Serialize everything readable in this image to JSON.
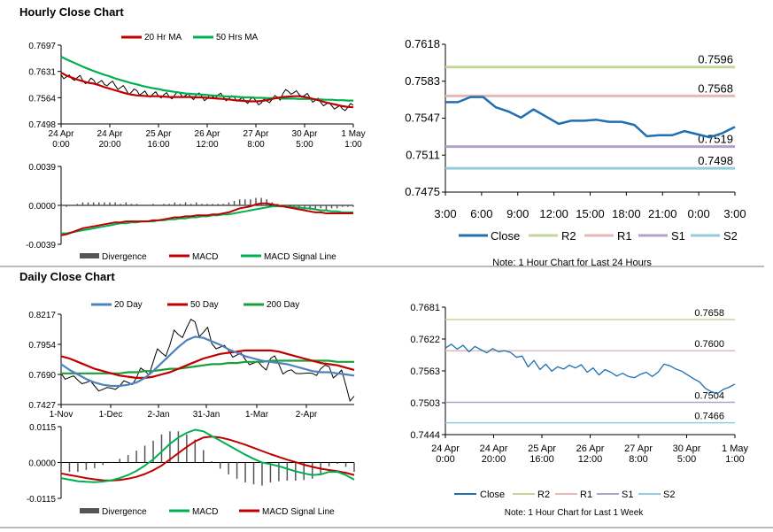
{
  "sections": {
    "hourly_title": "Hourly Close Chart",
    "daily_title": "Daily Close Chart"
  },
  "colors": {
    "ma_short": "#c00000",
    "ma_long": "#00b050",
    "ma_200": "#1a9e3c",
    "blue": "#4f81bd",
    "close": "#1f6fb2",
    "r2": "#c3d69b",
    "r1": "#e6b9b8",
    "s1": "#b3a2c7",
    "s2": "#93cddd",
    "price": "#000000",
    "divergence": "#555555"
  },
  "chart_data": [
    {
      "id": "hourly_price",
      "type": "line",
      "legend": [
        "20 Hr MA",
        "50 Hrs MA"
      ],
      "ylim": [
        0.7498,
        0.7697
      ],
      "yticks": [
        "0.7697",
        "0.7631",
        "0.7564",
        "0.7498"
      ],
      "xticks": [
        [
          "24 Apr",
          "0:00"
        ],
        [
          "24 Apr",
          "20:00"
        ],
        [
          "25 Apr",
          "16:00"
        ],
        [
          "26 Apr",
          "12:00"
        ],
        [
          "27 Apr",
          "8:00"
        ],
        [
          "30 Apr",
          "5:00"
        ],
        [
          "1 May",
          "1:00"
        ]
      ],
      "price": [
        0.7622,
        0.7617,
        0.7612,
        0.7615,
        0.7608,
        0.7604,
        0.7609,
        0.7603,
        0.7598,
        0.7601,
        0.7595,
        0.759,
        0.7585,
        0.7578,
        0.7582,
        0.7576,
        0.757,
        0.7574,
        0.7568,
        0.7572,
        0.7566,
        0.7571,
        0.7575,
        0.757,
        0.7565,
        0.7572,
        0.7568,
        0.7562,
        0.7567,
        0.7571,
        0.7566,
        0.7561,
        0.7565,
        0.756,
        0.7555,
        0.7561,
        0.7556,
        0.7551,
        0.7556,
        0.756,
        0.7565,
        0.7575,
        0.758,
        0.7577,
        0.7572,
        0.757,
        0.7564,
        0.7558,
        0.7552,
        0.7548,
        0.7544,
        0.754,
        0.7536,
        0.754,
        0.7545
      ],
      "ma20": [
        0.7628,
        0.762,
        0.7615,
        0.761,
        0.7606,
        0.7602,
        0.76,
        0.7596,
        0.7591,
        0.7587,
        0.7583,
        0.7579,
        0.7575,
        0.7572,
        0.757,
        0.7569,
        0.7568,
        0.7568,
        0.7568,
        0.7567,
        0.7566,
        0.7566,
        0.7566,
        0.7566,
        0.7566,
        0.7565,
        0.7565,
        0.7564,
        0.7563,
        0.7562,
        0.7561,
        0.756,
        0.7558,
        0.7557,
        0.7556,
        0.7555,
        0.7555,
        0.7556,
        0.7558,
        0.7561,
        0.7564,
        0.7566,
        0.7567,
        0.7568,
        0.7568,
        0.7566,
        0.7563,
        0.756,
        0.7556,
        0.7552,
        0.7549,
        0.7546,
        0.7543,
        0.7541,
        0.754
      ],
      "ma50": [
        0.7668,
        0.7661,
        0.7655,
        0.7649,
        0.7643,
        0.7637,
        0.7632,
        0.7627,
        0.7622,
        0.7618,
        0.7613,
        0.7609,
        0.7605,
        0.7601,
        0.7598,
        0.7594,
        0.7591,
        0.7588,
        0.7586,
        0.7583,
        0.7581,
        0.7579,
        0.7577,
        0.7575,
        0.7574,
        0.7573,
        0.7572,
        0.7571,
        0.757,
        0.7569,
        0.7568,
        0.7567,
        0.7567,
        0.7566,
        0.7565,
        0.7565,
        0.7564,
        0.7564,
        0.7563,
        0.7563,
        0.7563,
        0.7562,
        0.7562,
        0.7562,
        0.7561,
        0.7561,
        0.7561,
        0.756,
        0.756,
        0.7559,
        0.7559,
        0.7558,
        0.7558,
        0.7557,
        0.7557
      ]
    },
    {
      "id": "hourly_macd",
      "type": "line",
      "legend": [
        "Divergence",
        "MACD",
        "MACD Signal Line"
      ],
      "ylim": [
        -0.0039,
        0.0039
      ],
      "yticks": [
        "0.0039",
        "0.0000",
        "-0.0039"
      ],
      "macd": [
        -0.003,
        -0.0029,
        -0.0027,
        -0.0025,
        -0.0023,
        -0.0022,
        -0.0021,
        -0.002,
        -0.0019,
        -0.0018,
        -0.0017,
        -0.0017,
        -0.0016,
        -0.0016,
        -0.0016,
        -0.0016,
        -0.0016,
        -0.0015,
        -0.0015,
        -0.0014,
        -0.0013,
        -0.0012,
        -0.0012,
        -0.0011,
        -0.0011,
        -0.001,
        -0.001,
        -0.001,
        -0.0009,
        -0.0009,
        -0.0008,
        -0.0007,
        -0.0005,
        -0.0003,
        -0.0002,
        -0.0001,
        0.0001,
        0.0002,
        0.0002,
        0.0001,
        0.0,
        -0.0001,
        -0.0002,
        -0.0003,
        -0.0004,
        -0.0005,
        -0.0006,
        -0.0007,
        -0.0007,
        -0.0008,
        -0.0008,
        -0.0008,
        -0.0008,
        -0.0008,
        -0.0008
      ],
      "signal": [
        -0.0028,
        -0.0028,
        -0.0027,
        -0.0026,
        -0.0025,
        -0.0024,
        -0.0023,
        -0.0022,
        -0.0021,
        -0.002,
        -0.0019,
        -0.0018,
        -0.0018,
        -0.0017,
        -0.0017,
        -0.0016,
        -0.0016,
        -0.0016,
        -0.0015,
        -0.0015,
        -0.0014,
        -0.0014,
        -0.0013,
        -0.0013,
        -0.0012,
        -0.0012,
        -0.0011,
        -0.0011,
        -0.001,
        -0.001,
        -0.0009,
        -0.0009,
        -0.0008,
        -0.0007,
        -0.0006,
        -0.0005,
        -0.0004,
        -0.0003,
        -0.0002,
        -0.0001,
        -0.0001,
        -0.0001,
        -0.0001,
        -0.0002,
        -0.0002,
        -0.0003,
        -0.0003,
        -0.0004,
        -0.0005,
        -0.0005,
        -0.0006,
        -0.0006,
        -0.0007,
        -0.0007,
        -0.0007
      ]
    },
    {
      "id": "hourly_24h",
      "type": "line",
      "legend": [
        "Close",
        "R2",
        "R1",
        "S1",
        "S2"
      ],
      "note": "Note: 1 Hour Chart for Last 24 Hours",
      "ylim": [
        0.7475,
        0.7618
      ],
      "yticks": [
        "0.7618",
        "0.7583",
        "0.7547",
        "0.7511",
        "0.7475"
      ],
      "xticks": [
        "3:00",
        "6:00",
        "9:00",
        "12:00",
        "15:00",
        "18:00",
        "21:00",
        "0:00",
        "3:00"
      ],
      "levels": [
        {
          "name": "R2",
          "value": 0.7596,
          "label": "0.7596"
        },
        {
          "name": "R1",
          "value": 0.7568,
          "label": "0.7568"
        },
        {
          "name": "S1",
          "value": 0.7519,
          "label": "0.7519"
        },
        {
          "name": "S2",
          "value": 0.7498,
          "label": "0.7498"
        }
      ],
      "close": [
        0.7562,
        0.7562,
        0.7567,
        0.7567,
        0.7557,
        0.7553,
        0.7547,
        0.7555,
        0.7548,
        0.7541,
        0.7544,
        0.7544,
        0.7545,
        0.7543,
        0.7543,
        0.754,
        0.7529,
        0.753,
        0.753,
        0.7534,
        0.7531,
        0.7528,
        0.7532,
        0.7538
      ]
    },
    {
      "id": "daily_price",
      "type": "line",
      "legend": [
        "20 Day",
        "50 Day",
        "200 Day"
      ],
      "ylim": [
        0.7427,
        0.8217
      ],
      "yticks": [
        "0.8217",
        "0.7954",
        "0.7690",
        "0.7427"
      ],
      "xticks": [
        "1-Nov",
        "1-Dec",
        "2-Jan",
        "31-Jan",
        "1-Mar",
        "2-Apr"
      ],
      "price": [
        0.77,
        0.7665,
        0.764,
        0.762,
        0.759,
        0.756,
        0.757,
        0.759,
        0.762,
        0.766,
        0.772,
        0.78,
        0.788,
        0.795,
        0.804,
        0.81,
        0.815,
        0.806,
        0.796,
        0.793,
        0.79,
        0.786,
        0.782,
        0.779,
        0.776,
        0.783,
        0.778,
        0.772,
        0.77,
        0.77,
        0.77,
        0.774,
        0.776,
        0.769,
        0.76,
        0.75
      ],
      "d20": [
        0.778,
        0.773,
        0.769,
        0.765,
        0.762,
        0.76,
        0.759,
        0.759,
        0.76,
        0.762,
        0.766,
        0.772,
        0.779,
        0.786,
        0.793,
        0.799,
        0.802,
        0.801,
        0.798,
        0.795,
        0.791,
        0.788,
        0.785,
        0.783,
        0.781,
        0.78,
        0.779,
        0.778,
        0.776,
        0.774,
        0.772,
        0.771,
        0.771,
        0.77,
        0.769,
        0.768
      ],
      "d50": [
        0.785,
        0.783,
        0.78,
        0.777,
        0.774,
        0.772,
        0.77,
        0.768,
        0.767,
        0.766,
        0.766,
        0.767,
        0.769,
        0.771,
        0.774,
        0.777,
        0.78,
        0.783,
        0.785,
        0.787,
        0.788,
        0.789,
        0.79,
        0.79,
        0.79,
        0.79,
        0.789,
        0.787,
        0.785,
        0.783,
        0.781,
        0.779,
        0.778,
        0.777,
        0.775,
        0.773
      ],
      "d200": [
        0.77,
        0.77,
        0.77,
        0.77,
        0.77,
        0.77,
        0.77,
        0.77,
        0.771,
        0.771,
        0.772,
        0.772,
        0.773,
        0.774,
        0.774,
        0.775,
        0.776,
        0.777,
        0.778,
        0.778,
        0.779,
        0.779,
        0.78,
        0.78,
        0.78,
        0.781,
        0.781,
        0.781,
        0.781,
        0.781,
        0.781,
        0.781,
        0.781,
        0.78,
        0.78,
        0.78
      ]
    },
    {
      "id": "daily_macd",
      "type": "line",
      "legend": [
        "Divergence",
        "MACD",
        "MACD Signal Line"
      ],
      "ylim": [
        -0.0115,
        0.0115
      ],
      "yticks": [
        "0.0115",
        "0.0000",
        "-0.0115"
      ],
      "macd": [
        -0.005,
        -0.0055,
        -0.006,
        -0.0062,
        -0.0063,
        -0.0061,
        -0.0057,
        -0.005,
        -0.004,
        -0.0027,
        -0.001,
        0.001,
        0.0035,
        0.006,
        0.008,
        0.0095,
        0.0105,
        0.01,
        0.0085,
        0.007,
        0.0055,
        0.004,
        0.0025,
        0.0012,
        0.0,
        -0.0005,
        -0.0012,
        -0.002,
        -0.0028,
        -0.0035,
        -0.004,
        -0.0038,
        -0.003,
        -0.003,
        -0.004,
        -0.0055
      ],
      "signal": [
        -0.0035,
        -0.004,
        -0.0045,
        -0.005,
        -0.0054,
        -0.0057,
        -0.0058,
        -0.0056,
        -0.0052,
        -0.0046,
        -0.0037,
        -0.0025,
        -0.001,
        0.001,
        0.003,
        0.005,
        0.0068,
        0.008,
        0.0083,
        0.008,
        0.0074,
        0.0066,
        0.0057,
        0.0047,
        0.0037,
        0.0027,
        0.0018,
        0.0009,
        0.0001,
        -0.0007,
        -0.0014,
        -0.002,
        -0.0024,
        -0.0028,
        -0.0033,
        -0.004
      ]
    },
    {
      "id": "daily_week",
      "type": "line",
      "legend": [
        "Close",
        "R2",
        "R1",
        "S1",
        "S2"
      ],
      "note": "Note: 1 Hour Chart for Last 1 Week",
      "ylim": [
        0.7444,
        0.7681
      ],
      "yticks": [
        "0.7681",
        "0.7622",
        "0.7563",
        "0.7503",
        "0.7444"
      ],
      "xticks": [
        [
          "24 Apr",
          "0:00"
        ],
        [
          "24 Apr",
          "20:00"
        ],
        [
          "25 Apr",
          "16:00"
        ],
        [
          "26 Apr",
          "12:00"
        ],
        [
          "27 Apr",
          "8:00"
        ],
        [
          "30 Apr",
          "5:00"
        ],
        [
          "1 May",
          "1:00"
        ]
      ],
      "levels": [
        {
          "name": "R2",
          "value": 0.7658,
          "label": "0.7658"
        },
        {
          "name": "R1",
          "value": 0.76,
          "label": "0.7600"
        },
        {
          "name": "S1",
          "value": 0.7504,
          "label": "0.7504"
        },
        {
          "name": "S2",
          "value": 0.7466,
          "label": "0.7466"
        }
      ],
      "close": [
        0.7605,
        0.7612,
        0.7603,
        0.761,
        0.7598,
        0.7608,
        0.7602,
        0.7596,
        0.7604,
        0.7598,
        0.76,
        0.7597,
        0.7588,
        0.759,
        0.757,
        0.7582,
        0.7565,
        0.7575,
        0.7562,
        0.757,
        0.7566,
        0.7573,
        0.7568,
        0.7574,
        0.756,
        0.7568,
        0.7555,
        0.7565,
        0.756,
        0.7553,
        0.7558,
        0.7552,
        0.755,
        0.7556,
        0.756,
        0.7552,
        0.756,
        0.7575,
        0.7572,
        0.7566,
        0.7562,
        0.7555,
        0.7548,
        0.7542,
        0.753,
        0.7524,
        0.752,
        0.7528,
        0.7532,
        0.7538
      ]
    }
  ]
}
